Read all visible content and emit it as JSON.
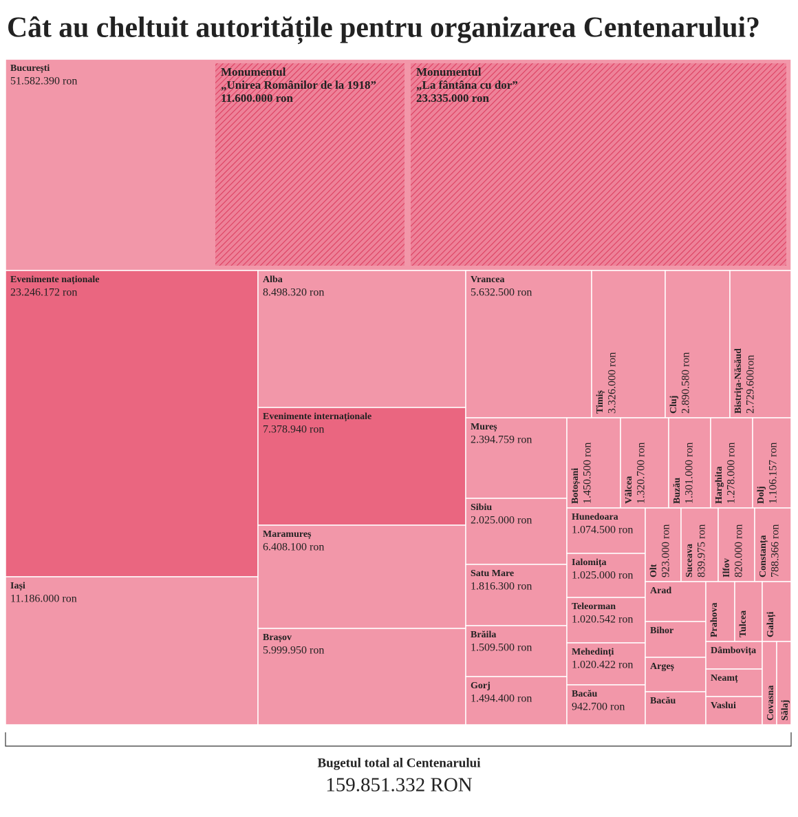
{
  "chart_data": {
    "type": "treemap",
    "title": "Cât au cheltuit autoritățile pentru organizarea Centenarului?",
    "categories": [
      "București",
      "Evenimente naționale",
      "Iași",
      "Alba",
      "Evenimente internaționale",
      "Maramureș",
      "Brașov",
      "Vrancea",
      "Timiș",
      "Cluj",
      "Bistrița-Năsăud",
      "Mureș",
      "Sibiu",
      "Satu Mare",
      "Brăila",
      "Gorj",
      "Botoșani",
      "Vâlcea",
      "Buzău",
      "Harghita",
      "Dolj",
      "Hunedoara",
      "Ialomița",
      "Teleorman",
      "Mehedinți",
      "Bacău",
      "Olt",
      "Suceava",
      "Ilfov",
      "Constanța",
      "Arad",
      "Bihor",
      "Argeș",
      "Bacău",
      "Prahova",
      "Tulcea",
      "Galați",
      "Dâmbovița",
      "Neamț",
      "Vaslui",
      "Covasna",
      "Sălaj"
    ],
    "values": [
      51582390,
      23246172,
      11186000,
      8498320,
      7378940,
      6408100,
      5999950,
      5632500,
      3326000,
      2890580,
      2729600,
      2394759,
      2025000,
      1816300,
      1509500,
      1494400,
      1450500,
      1320700,
      1301000,
      1278000,
      1106157,
      1074500,
      1025000,
      1020542,
      1020422,
      942700,
      923000,
      839975,
      820000,
      788366,
      740000,
      660000,
      640000,
      610000,
      530000,
      505000,
      530000,
      475000,
      475000,
      470000,
      370000,
      370000
    ],
    "value_labels": [
      "51.582.390 ron",
      "23.246.172 ron",
      "11.186.000 ron",
      "8.498.320 ron",
      "7.378.940 ron",
      "6.408.100 ron",
      "5.999.950 ron",
      "5.632.500 ron",
      "3.326.000 ron",
      "2.890.580 ron",
      "2.729.600ron",
      "2.394.759 ron",
      "2.025.000 ron",
      "1.816.300 ron",
      "1.509.500 ron",
      "1.494.400 ron",
      "1.450.500 ron",
      "1.320.700 ron",
      "1.301.000 ron",
      "1.278.000 ron",
      "1.106.157 ron",
      "1.074.500 ron",
      "1.025.000 ron",
      "1.020.542 ron",
      "1.020.422 ron",
      "942.700 ron",
      "923.000 ron",
      "839.975 ron",
      "820.000 ron",
      "788.366 ron",
      null,
      null,
      null,
      null,
      null,
      null,
      null,
      null,
      null,
      null,
      null,
      null
    ],
    "colors": [
      "#f297a9",
      "#ea6680",
      "#f297a9",
      "#f297a9",
      "#ea6680",
      "#f297a9",
      "#f297a9",
      "#f297a9",
      "#f297a9",
      "#f297a9",
      "#f297a9",
      "#f297a9",
      "#f297a9",
      "#f297a9",
      "#f297a9",
      "#f297a9",
      "#f297a9",
      "#f297a9",
      "#f297a9",
      "#f297a9",
      "#f297a9",
      "#f297a9",
      "#f297a9",
      "#f297a9",
      "#f297a9",
      "#f297a9",
      "#f297a9",
      "#f297a9",
      "#f297a9",
      "#f297a9",
      "#f297a9",
      "#f297a9",
      "#f297a9",
      "#f297a9",
      "#f297a9",
      "#f297a9",
      "#f297a9",
      "#f297a9",
      "#f297a9",
      "#f297a9",
      "#f297a9",
      "#f297a9"
    ],
    "details": [
      {
        "name": "Monumentul",
        "subtitle": "„Unirea Românilor de la 1918”",
        "value": 11600000,
        "value_label": "11.600.000 ron"
      },
      {
        "name": "Monumentul",
        "subtitle": "„La fântâna cu dor”",
        "value": 23335000,
        "value_label": "23.335.000 ron"
      }
    ],
    "detail_color": "#d3122f",
    "total": {
      "label": "Bugetul total al Centenarului",
      "value": 159851332,
      "value_label": "159.851.332 RON"
    }
  }
}
